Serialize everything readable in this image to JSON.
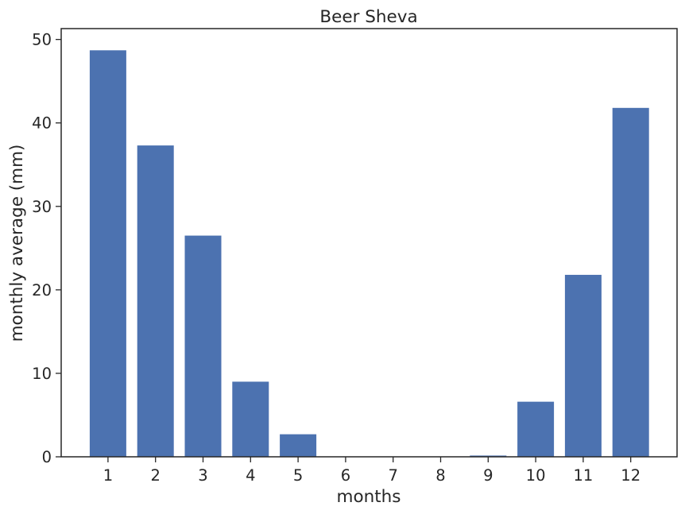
{
  "chart_data": {
    "type": "bar",
    "title": "Beer Sheva",
    "xlabel": "months",
    "ylabel": "monthly average (mm)",
    "categories": [
      "1",
      "2",
      "3",
      "4",
      "5",
      "6",
      "7",
      "8",
      "9",
      "10",
      "11",
      "12"
    ],
    "values": [
      48.7,
      37.3,
      26.5,
      9.0,
      2.7,
      0.0,
      0.0,
      0.0,
      0.15,
      6.6,
      21.8,
      41.8
    ],
    "yticks": [
      "0",
      "10",
      "20",
      "30",
      "40",
      "50"
    ],
    "ylim": [
      0,
      51.3
    ],
    "grid": false,
    "legend": "none",
    "bar_color": "#4c72b0",
    "axis_color": "#262626"
  }
}
